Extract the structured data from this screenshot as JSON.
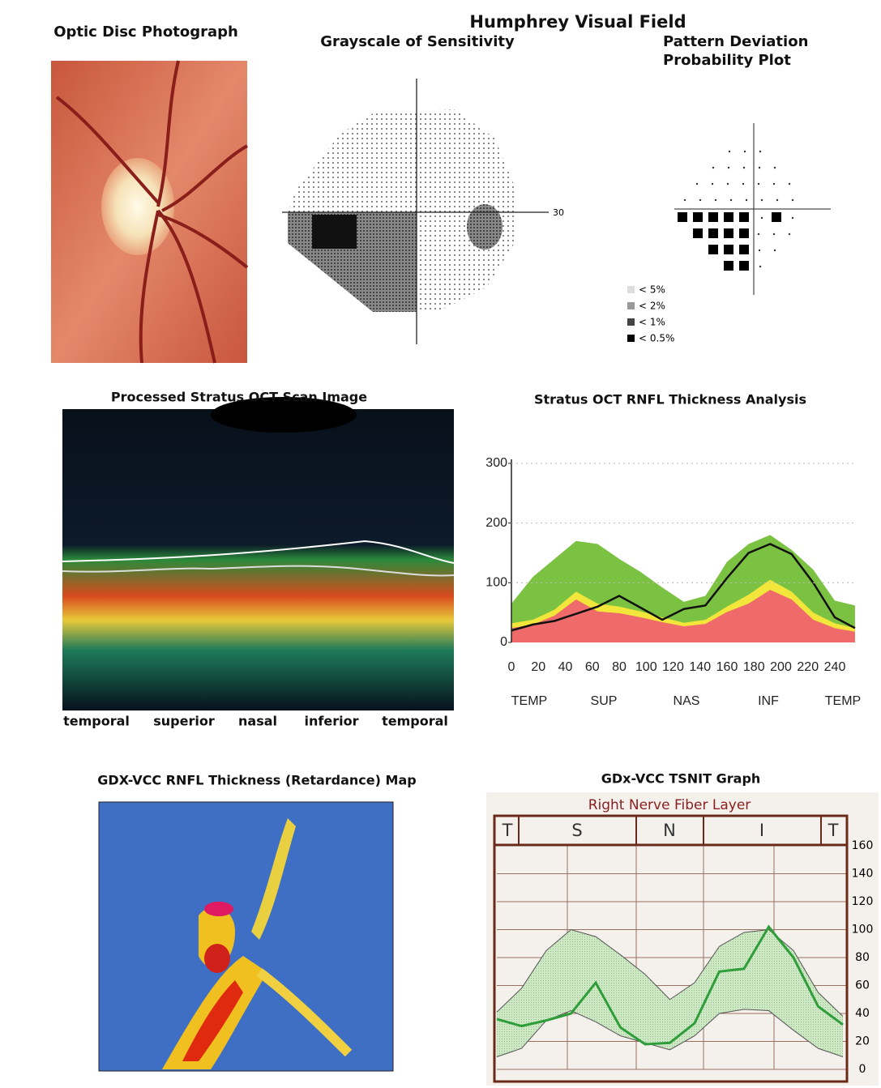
{
  "figure": {
    "optic_disc_title": "Optic Disc Photograph",
    "humphrey_title": "Humphrey Visual Field",
    "grayscale_title": "Grayscale of Sensitivity",
    "grayscale_axis_label": "30",
    "pattern_title": [
      "Pattern Deviation",
      "Probability Plot"
    ],
    "pattern_legend": [
      "< 5%",
      "< 2%",
      "< 1%",
      "< 0.5%"
    ],
    "oct_scan_title": "Processed Stratus OCT Scan Image",
    "oct_scan_labels": [
      "temporal",
      "superior",
      "nasal",
      "inferior",
      "temporal"
    ],
    "gdx_map_title": "GDX-VCC RNFL Thickness (Retardance) Map"
  },
  "chart_data": [
    {
      "type": "area",
      "title": "Stratus OCT RNFL Thickness Analysis",
      "region_labels": [
        "TEMP",
        "SUP",
        "NAS",
        "INF",
        "TEMP"
      ],
      "x": [
        0,
        16,
        32,
        48,
        64,
        80,
        96,
        112,
        128,
        144,
        160,
        176,
        192,
        208,
        224,
        240,
        255
      ],
      "series": [
        {
          "color": "#7cc242",
          "fill": true,
          "values": [
            65,
            110,
            140,
            170,
            165,
            140,
            118,
            92,
            68,
            78,
            135,
            165,
            180,
            155,
            122,
            70,
            62
          ]
        },
        {
          "color": "#f2e63a",
          "fill": true,
          "values": [
            32,
            38,
            55,
            85,
            65,
            60,
            52,
            42,
            33,
            38,
            60,
            80,
            105,
            85,
            50,
            32,
            24
          ]
        },
        {
          "color": "#ef6a6a",
          "fill": true,
          "values": [
            24,
            30,
            45,
            72,
            52,
            49,
            42,
            34,
            27,
            31,
            51,
            65,
            88,
            72,
            38,
            24,
            18
          ]
        },
        {
          "color": "#111111",
          "fill": false,
          "values": [
            20,
            30,
            36,
            48,
            60,
            78,
            58,
            38,
            56,
            62,
            108,
            150,
            165,
            148,
            100,
            42,
            24
          ]
        }
      ],
      "xlim": [
        0,
        255
      ],
      "xticks": [
        0,
        20,
        40,
        60,
        80,
        100,
        120,
        140,
        160,
        180,
        200,
        220,
        240
      ],
      "ylim": [
        0,
        300
      ],
      "yticks": [
        0,
        100,
        200,
        300
      ],
      "grid": true
    },
    {
      "type": "band",
      "title": "GDx-VCC TSNIT Graph",
      "subtitle": "Right Nerve Fiber Layer",
      "region_labels": [
        "T",
        "S",
        "N",
        "I",
        "T"
      ],
      "series": [
        {
          "color": "#c8e8c0",
          "values": [
            41,
            58,
            85,
            100,
            95,
            82,
            68,
            50,
            62,
            88,
            98,
            100,
            85,
            55,
            38
          ],
          "low": [
            9,
            15,
            35,
            42,
            34,
            24,
            19,
            14,
            24,
            40,
            43,
            42,
            28,
            15,
            9
          ]
        },
        {
          "color": "#2f9e3a",
          "values": [
            36,
            31,
            35,
            40,
            62,
            30,
            18,
            19,
            33,
            70,
            72,
            102,
            80,
            45,
            32
          ]
        }
      ],
      "ylim": [
        0,
        160
      ],
      "yticks": [
        0,
        20,
        40,
        60,
        80,
        100,
        120,
        140,
        160
      ],
      "grid": true
    }
  ]
}
